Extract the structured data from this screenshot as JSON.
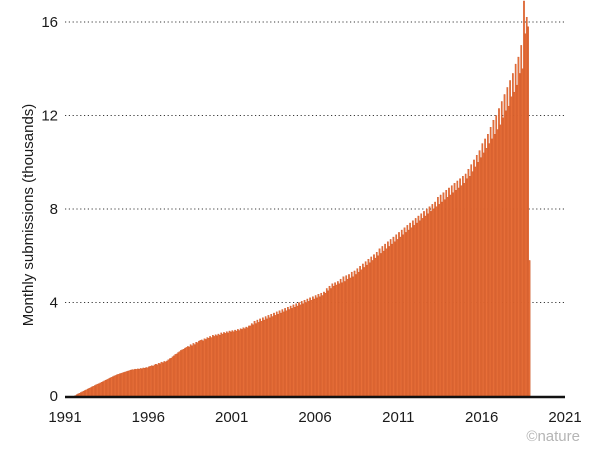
{
  "chart_data": {
    "type": "bar",
    "ylabel": "Monthly submissions (thousands)",
    "xlabel": "",
    "ylim": [
      0,
      17
    ],
    "yticks": [
      0,
      4,
      8,
      12,
      16
    ],
    "xticks": [
      "1991",
      "1996",
      "2001",
      "2006",
      "2011",
      "2016",
      "2021"
    ],
    "xrange": [
      "1991-08",
      "2021-01"
    ],
    "grid": "horizontal dotted",
    "bar_color": "#e8703a",
    "bar_edge_color": "#c9501f",
    "series": [
      {
        "frequency": "monthly",
        "start": "1991-08",
        "values": [
          0.02,
          0.06,
          0.09,
          0.12,
          0.15,
          0.18,
          0.21,
          0.24,
          0.27,
          0.3,
          0.33,
          0.36,
          0.39,
          0.42,
          0.45,
          0.48,
          0.51,
          0.53,
          0.56,
          0.59,
          0.62,
          0.65,
          0.68,
          0.71,
          0.74,
          0.77,
          0.8,
          0.83,
          0.86,
          0.88,
          0.91,
          0.93,
          0.95,
          0.97,
          0.99,
          1.01,
          1.03,
          1.05,
          1.07,
          1.09,
          1.11,
          1.13,
          1.12,
          1.15,
          1.14,
          1.16,
          1.15,
          1.18,
          1.17,
          1.2,
          1.19,
          1.22,
          1.21,
          1.25,
          1.27,
          1.3,
          1.28,
          1.33,
          1.36,
          1.34,
          1.4,
          1.38,
          1.45,
          1.42,
          1.48,
          1.46,
          1.5,
          1.55,
          1.6,
          1.62,
          1.68,
          1.72,
          1.78,
          1.8,
          1.86,
          1.9,
          1.95,
          1.98,
          2.0,
          2.05,
          2.08,
          2.12,
          2.1,
          2.2,
          2.15,
          2.25,
          2.2,
          2.3,
          2.28,
          2.35,
          2.38,
          2.4,
          2.36,
          2.45,
          2.42,
          2.5,
          2.47,
          2.55,
          2.5,
          2.6,
          2.55,
          2.62,
          2.58,
          2.65,
          2.6,
          2.7,
          2.65,
          2.72,
          2.68,
          2.75,
          2.7,
          2.78,
          2.74,
          2.8,
          2.75,
          2.82,
          2.78,
          2.85,
          2.8,
          2.88,
          2.85,
          2.92,
          2.88,
          2.95,
          2.92,
          3.0,
          3.0,
          3.1,
          3.05,
          3.2,
          3.1,
          3.25,
          3.15,
          3.3,
          3.2,
          3.35,
          3.25,
          3.4,
          3.3,
          3.45,
          3.35,
          3.5,
          3.4,
          3.55,
          3.45,
          3.6,
          3.5,
          3.65,
          3.55,
          3.7,
          3.6,
          3.75,
          3.65,
          3.8,
          3.7,
          3.85,
          3.75,
          3.9,
          3.8,
          3.95,
          3.85,
          4.0,
          3.9,
          4.05,
          3.95,
          4.1,
          4.0,
          4.15,
          4.05,
          4.2,
          4.1,
          4.25,
          4.15,
          4.3,
          4.2,
          4.35,
          4.25,
          4.4,
          4.3,
          4.45,
          4.4,
          4.6,
          4.5,
          4.7,
          4.6,
          4.8,
          4.7,
          4.85,
          4.75,
          4.9,
          4.8,
          5.0,
          4.85,
          5.1,
          4.9,
          5.15,
          5.0,
          5.2,
          5.05,
          5.3,
          5.1,
          5.35,
          5.2,
          5.45,
          5.3,
          5.55,
          5.4,
          5.65,
          5.5,
          5.75,
          5.6,
          5.85,
          5.7,
          5.95,
          5.8,
          6.05,
          5.9,
          6.15,
          6.0,
          6.3,
          6.1,
          6.4,
          6.2,
          6.5,
          6.3,
          6.6,
          6.4,
          6.7,
          6.5,
          6.8,
          6.6,
          6.9,
          6.7,
          7.0,
          6.8,
          7.1,
          6.9,
          7.2,
          7.0,
          7.3,
          7.1,
          7.4,
          7.2,
          7.5,
          7.3,
          7.6,
          7.4,
          7.7,
          7.5,
          7.8,
          7.6,
          7.9,
          7.7,
          8.0,
          7.8,
          8.1,
          7.9,
          8.2,
          8.0,
          8.3,
          8.1,
          8.5,
          8.2,
          8.6,
          8.3,
          8.7,
          8.4,
          8.8,
          8.5,
          8.9,
          8.6,
          9.0,
          8.7,
          9.1,
          8.8,
          9.2,
          8.9,
          9.3,
          9.0,
          9.4,
          9.1,
          9.5,
          9.3,
          9.7,
          9.4,
          9.9,
          9.6,
          10.1,
          9.8,
          10.3,
          10.0,
          10.5,
          10.2,
          10.8,
          10.4,
          11.0,
          10.6,
          11.2,
          10.8,
          11.5,
          11.0,
          11.8,
          11.2,
          12.0,
          11.4,
          12.3,
          11.6,
          12.6,
          11.9,
          12.9,
          12.2,
          13.2,
          12.4,
          13.5,
          12.8,
          13.8,
          13.0,
          14.2,
          13.3,
          14.5,
          13.8,
          15.0,
          14.0,
          16.9,
          15.5,
          16.2,
          15.8,
          5.8
        ]
      }
    ],
    "credit": "©nature"
  }
}
